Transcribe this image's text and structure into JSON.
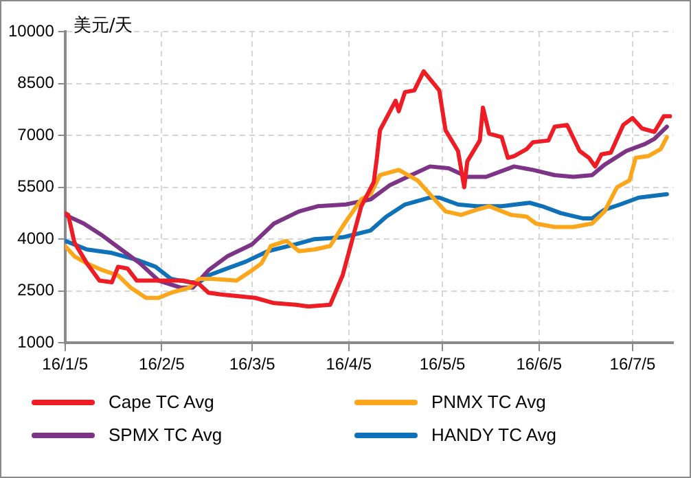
{
  "chart_data": {
    "type": "line",
    "ylabel": "美元/天",
    "xlim": [
      "--01-05",
      "--07-18"
    ],
    "xticks": [
      {
        "value": "--01-05",
        "label": "16/1/5"
      },
      {
        "value": "--02-05",
        "label": "16/2/5"
      },
      {
        "value": "--03-05",
        "label": "16/3/5"
      },
      {
        "value": "--04-05",
        "label": "16/4/5"
      },
      {
        "value": "--05-05",
        "label": "16/5/5"
      },
      {
        "value": "--06-05",
        "label": "16/6/5"
      },
      {
        "value": "--07-05",
        "label": "16/7/5"
      }
    ],
    "ylim": [
      1000,
      10000
    ],
    "yticks": [
      1000,
      2500,
      4000,
      5500,
      7000,
      8500,
      10000
    ],
    "grid": true,
    "legend": "bottom",
    "marker": "none",
    "line_style": "solid",
    "series": [
      {
        "name": "Cape TC Avg",
        "color": "#ee1c25",
        "x": [
          "--01-05",
          "--01-06",
          "--01-08",
          "--01-12",
          "--01-16",
          "--01-20",
          "--01-22",
          "--01-25",
          "--01-28",
          "--02-03",
          "--02-12",
          "--02-17",
          "--02-20",
          "--02-24",
          "--03-06",
          "--03-12",
          "--03-19",
          "--03-23",
          "--03-30",
          "--04-03",
          "--04-09",
          "--04-13",
          "--04-14",
          "--04-15",
          "--04-20",
          "--04-21",
          "--04-23",
          "--04-26",
          "--04-29",
          "--05-04",
          "--05-06",
          "--05-10",
          "--05-12",
          "--05-13",
          "--05-17",
          "--05-18",
          "--05-20",
          "--05-24",
          "--05-26",
          "--05-28",
          "--06-01",
          "--06-03",
          "--06-08",
          "--06-10",
          "--06-14",
          "--06-18",
          "--06-21",
          "--06-23",
          "--06-25",
          "--06-28",
          "--07-02",
          "--07-05",
          "--07-08",
          "--07-12",
          "--07-15",
          "--07-17"
        ],
        "values": [
          4750,
          4700,
          3900,
          3300,
          2800,
          2750,
          3200,
          3150,
          2800,
          2800,
          2800,
          2700,
          2450,
          2400,
          2300,
          2150,
          2100,
          2050,
          2100,
          2950,
          4950,
          5650,
          6350,
          7150,
          8000,
          7700,
          8250,
          8300,
          8850,
          8300,
          7150,
          6550,
          5500,
          6250,
          6850,
          7800,
          7050,
          6950,
          6350,
          6400,
          6600,
          6800,
          6850,
          7250,
          7300,
          6550,
          6350,
          6100,
          6450,
          6500,
          7300,
          7500,
          7200,
          7100,
          7550,
          7550
        ]
      },
      {
        "name": "PNMX TC Avg",
        "color": "#fca61c",
        "x": [
          "--01-05",
          "--01-08",
          "--01-12",
          "--01-17",
          "--01-22",
          "--01-26",
          "--01-31",
          "--02-04",
          "--02-08",
          "--02-14",
          "--02-17",
          "--02-21",
          "--02-29",
          "--03-05",
          "--03-08",
          "--03-11",
          "--03-16",
          "--03-20",
          "--03-25",
          "--03-30",
          "--04-04",
          "--04-09",
          "--04-12",
          "--04-15",
          "--04-21",
          "--04-27",
          "--05-01",
          "--05-06",
          "--05-11",
          "--05-16",
          "--05-20",
          "--05-27",
          "--06-01",
          "--06-04",
          "--06-10",
          "--06-16",
          "--06-22",
          "--06-26",
          "--06-30",
          "--07-04",
          "--07-06",
          "--07-10",
          "--07-14",
          "--07-16"
        ],
        "values": [
          3800,
          3500,
          3300,
          3100,
          2950,
          2600,
          2300,
          2300,
          2450,
          2600,
          2850,
          2850,
          2800,
          3100,
          3300,
          3800,
          3950,
          3650,
          3700,
          3800,
          4500,
          5150,
          5300,
          5850,
          6000,
          5700,
          5300,
          4800,
          4700,
          4850,
          4950,
          4700,
          4650,
          4450,
          4350,
          4350,
          4450,
          4800,
          5500,
          5700,
          6350,
          6400,
          6600,
          6950
        ]
      },
      {
        "name": "SPMX TC Avg",
        "color": "#7d3487",
        "x": [
          "--01-05",
          "--01-11",
          "--01-17",
          "--01-23",
          "--01-29",
          "--02-04",
          "--02-11",
          "--02-15",
          "--02-20",
          "--02-26",
          "--03-05",
          "--03-12",
          "--03-20",
          "--03-26",
          "--04-04",
          "--04-12",
          "--04-18",
          "--04-25",
          "--05-01",
          "--05-07",
          "--05-13",
          "--05-19",
          "--05-28",
          "--06-03",
          "--06-10",
          "--06-16",
          "--06-22",
          "--06-26",
          "--07-03",
          "--07-09",
          "--07-12",
          "--07-16"
        ],
        "values": [
          4700,
          4450,
          4100,
          3700,
          3300,
          2800,
          2600,
          2600,
          3100,
          3500,
          3850,
          4450,
          4800,
          4950,
          5000,
          5150,
          5550,
          5850,
          6100,
          6050,
          5800,
          5800,
          6100,
          6000,
          5850,
          5800,
          5850,
          6150,
          6550,
          6750,
          6900,
          7250
        ]
      },
      {
        "name": "HANDY TC Avg",
        "color": "#0f72b8",
        "x": [
          "--01-05",
          "--01-12",
          "--01-20",
          "--01-28",
          "--02-03",
          "--02-08",
          "--02-14",
          "--02-17",
          "--02-20",
          "--02-26",
          "--03-03",
          "--03-10",
          "--03-19",
          "--03-25",
          "--04-03",
          "--04-12",
          "--04-17",
          "--04-23",
          "--05-01",
          "--05-04",
          "--05-10",
          "--05-16",
          "--05-24",
          "--06-02",
          "--06-06",
          "--06-12",
          "--06-19",
          "--06-22",
          "--06-26",
          "--07-01",
          "--07-07",
          "--07-16"
        ],
        "values": [
          3950,
          3700,
          3600,
          3400,
          3200,
          2850,
          2750,
          2750,
          2950,
          3150,
          3350,
          3650,
          3850,
          4000,
          4050,
          4250,
          4650,
          5000,
          5200,
          5200,
          5000,
          4950,
          4950,
          5050,
          4950,
          4750,
          4600,
          4600,
          4850,
          5000,
          5200,
          5300
        ]
      }
    ]
  }
}
